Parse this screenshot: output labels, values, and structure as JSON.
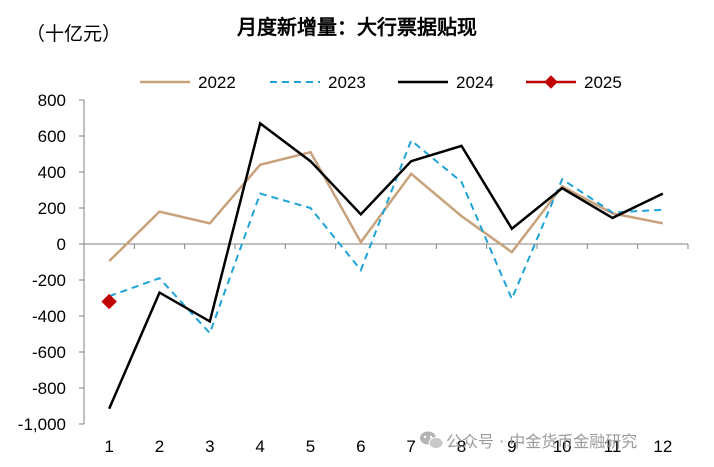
{
  "chart_data": {
    "type": "line",
    "title": "月度新增量：大行票据贴现",
    "unit_label": "（十亿元）",
    "categories": [
      "1",
      "2",
      "3",
      "4",
      "5",
      "6",
      "7",
      "8",
      "9",
      "10",
      "11",
      "12"
    ],
    "ylim": [
      -1000,
      800
    ],
    "yticks": [
      800,
      600,
      400,
      200,
      0,
      -200,
      -400,
      -600,
      -800,
      -1000
    ],
    "ytick_labels": [
      "800",
      "600",
      "400",
      "200",
      "0",
      "-200",
      "-400",
      "-600",
      "-800",
      "-1,000"
    ],
    "grid": false,
    "legend_position": "top",
    "series": [
      {
        "name": "2022",
        "color": "#c8a27c",
        "dash": "solid",
        "marker": "none",
        "values": [
          -95,
          180,
          115,
          440,
          510,
          10,
          390,
          155,
          -45,
          320,
          170,
          115
        ]
      },
      {
        "name": "2023",
        "color": "#1fa3d9",
        "dash": "dashed",
        "marker": "none",
        "values": [
          -290,
          -190,
          -495,
          280,
          200,
          -145,
          575,
          345,
          -305,
          360,
          175,
          190
        ]
      },
      {
        "name": "2024",
        "color": "#000000",
        "dash": "solid",
        "marker": "none",
        "values": [
          -915,
          -270,
          -430,
          670,
          460,
          165,
          460,
          545,
          85,
          310,
          145,
          280
        ]
      },
      {
        "name": "2025",
        "color": "#c00000",
        "dash": "solid",
        "marker": "diamond",
        "values": [
          -320,
          null,
          null,
          null,
          null,
          null,
          null,
          null,
          null,
          null,
          null,
          null
        ]
      }
    ]
  },
  "watermark": {
    "icon": "wechat-icon",
    "text": "公众号 · 中金货币金融研究"
  }
}
